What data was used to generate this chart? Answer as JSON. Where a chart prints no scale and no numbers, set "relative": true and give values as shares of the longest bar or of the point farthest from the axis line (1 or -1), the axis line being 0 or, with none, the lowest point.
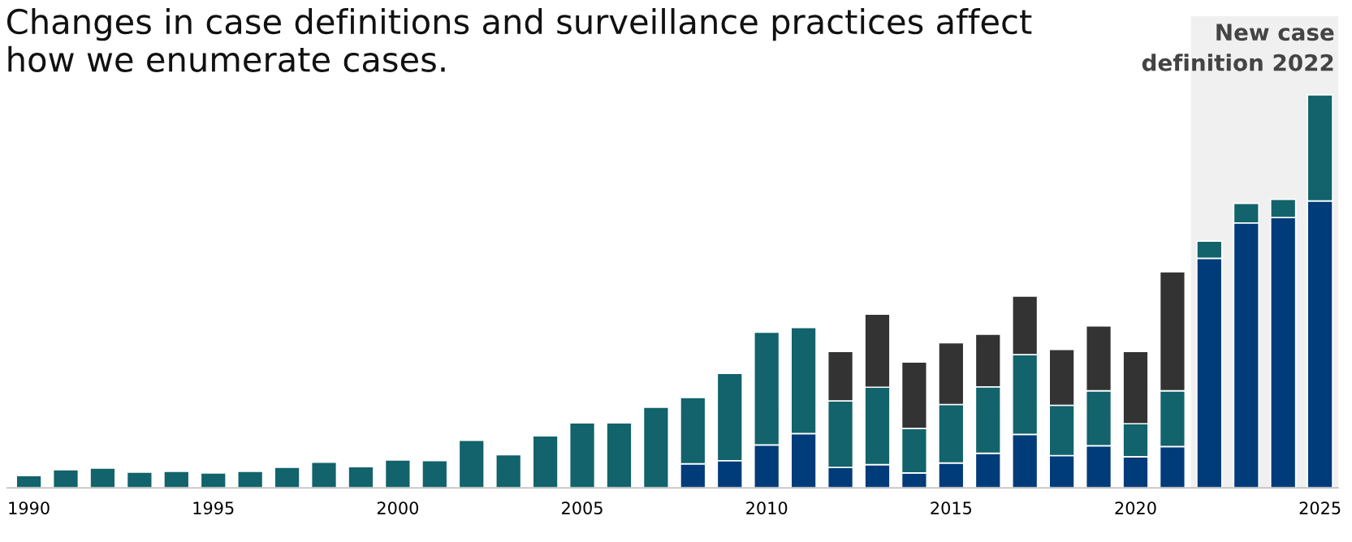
{
  "chart_data": {
    "type": "bar",
    "stacked": true,
    "relative": true,
    "title": "Changes in case definitions and surveillance practices affect how we enumerate cases.",
    "x": [
      1990,
      1991,
      1992,
      1993,
      1994,
      1995,
      1996,
      1997,
      1998,
      1999,
      2000,
      2001,
      2002,
      2003,
      2004,
      2005,
      2006,
      2007,
      2008,
      2009,
      2010,
      2011,
      2012,
      2013,
      2014,
      2015,
      2016,
      2017,
      2018,
      2019,
      2020,
      2021,
      2022,
      2023,
      2024,
      2025
    ],
    "xlim": [
      1989.4,
      2025.5
    ],
    "xticks": [
      1990,
      1995,
      2000,
      2005,
      2010,
      2015,
      2020,
      2025
    ],
    "series": [
      {
        "color": "#003b7a",
        "values": [
          null,
          null,
          null,
          null,
          null,
          null,
          null,
          null,
          null,
          null,
          null,
          null,
          null,
          null,
          null,
          null,
          null,
          null,
          0.061,
          0.069,
          0.109,
          0.138,
          0.052,
          0.059,
          0.038,
          0.063,
          0.088,
          0.136,
          0.082,
          0.107,
          0.079,
          0.105,
          0.584,
          0.674,
          0.688,
          0.73
        ]
      },
      {
        "color": "#12636b",
        "values": [
          0.031,
          0.046,
          0.05,
          0.04,
          0.042,
          0.038,
          0.042,
          0.052,
          0.065,
          0.054,
          0.071,
          0.069,
          0.121,
          0.084,
          0.132,
          0.165,
          0.165,
          0.205,
          0.169,
          0.222,
          0.287,
          0.27,
          0.169,
          0.197,
          0.113,
          0.149,
          0.169,
          0.203,
          0.128,
          0.14,
          0.084,
          0.142,
          0.044,
          0.05,
          0.046,
          0.27
        ]
      },
      {
        "color": "#333333",
        "values": [
          null,
          null,
          null,
          null,
          null,
          null,
          null,
          null,
          null,
          null,
          null,
          null,
          null,
          null,
          null,
          null,
          null,
          null,
          null,
          null,
          null,
          null,
          0.126,
          0.186,
          0.169,
          0.157,
          0.134,
          0.149,
          0.142,
          0.165,
          0.184,
          0.303,
          null,
          null,
          null,
          null
        ]
      }
    ],
    "bands": [
      {
        "axis": "x",
        "from": 2021.5,
        "to": 2025.5,
        "label": "New case definition 2022",
        "color": "#f0f0f0"
      }
    ],
    "grid": false
  }
}
